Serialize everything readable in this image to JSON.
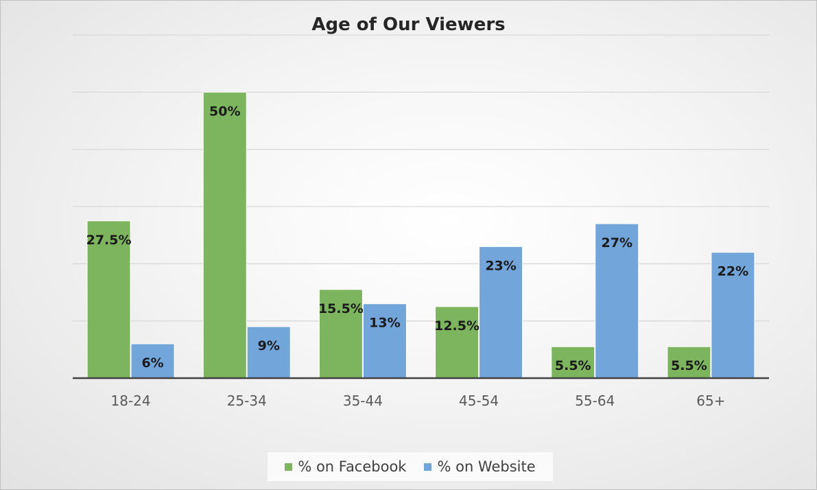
{
  "chart_data": {
    "type": "bar",
    "title": "Age of Our Viewers",
    "xlabel": "",
    "ylabel": "",
    "categories": [
      "18-24",
      "25-34",
      "35-44",
      "45-54",
      "55-64",
      "65+"
    ],
    "series": [
      {
        "name": "% on Facebook",
        "color": "#7cb55e",
        "values": [
          27.5,
          50,
          15.5,
          12.5,
          5.5,
          5.5
        ],
        "labels": [
          "27.5%",
          "50%",
          "15.5%",
          "12.5%",
          "5.5%",
          "5.5%"
        ]
      },
      {
        "name": "% on Website",
        "color": "#72a5da",
        "values": [
          6,
          9,
          13,
          23,
          27,
          22
        ],
        "labels": [
          "6%",
          "9%",
          "13%",
          "23%",
          "27%",
          "22%"
        ]
      }
    ],
    "ylim": [
      0,
      60
    ],
    "gridlines": [
      10,
      20,
      30,
      40,
      50,
      60
    ],
    "grid": true,
    "axis_tick_labels_shown": false,
    "legend_position": "bottom"
  }
}
